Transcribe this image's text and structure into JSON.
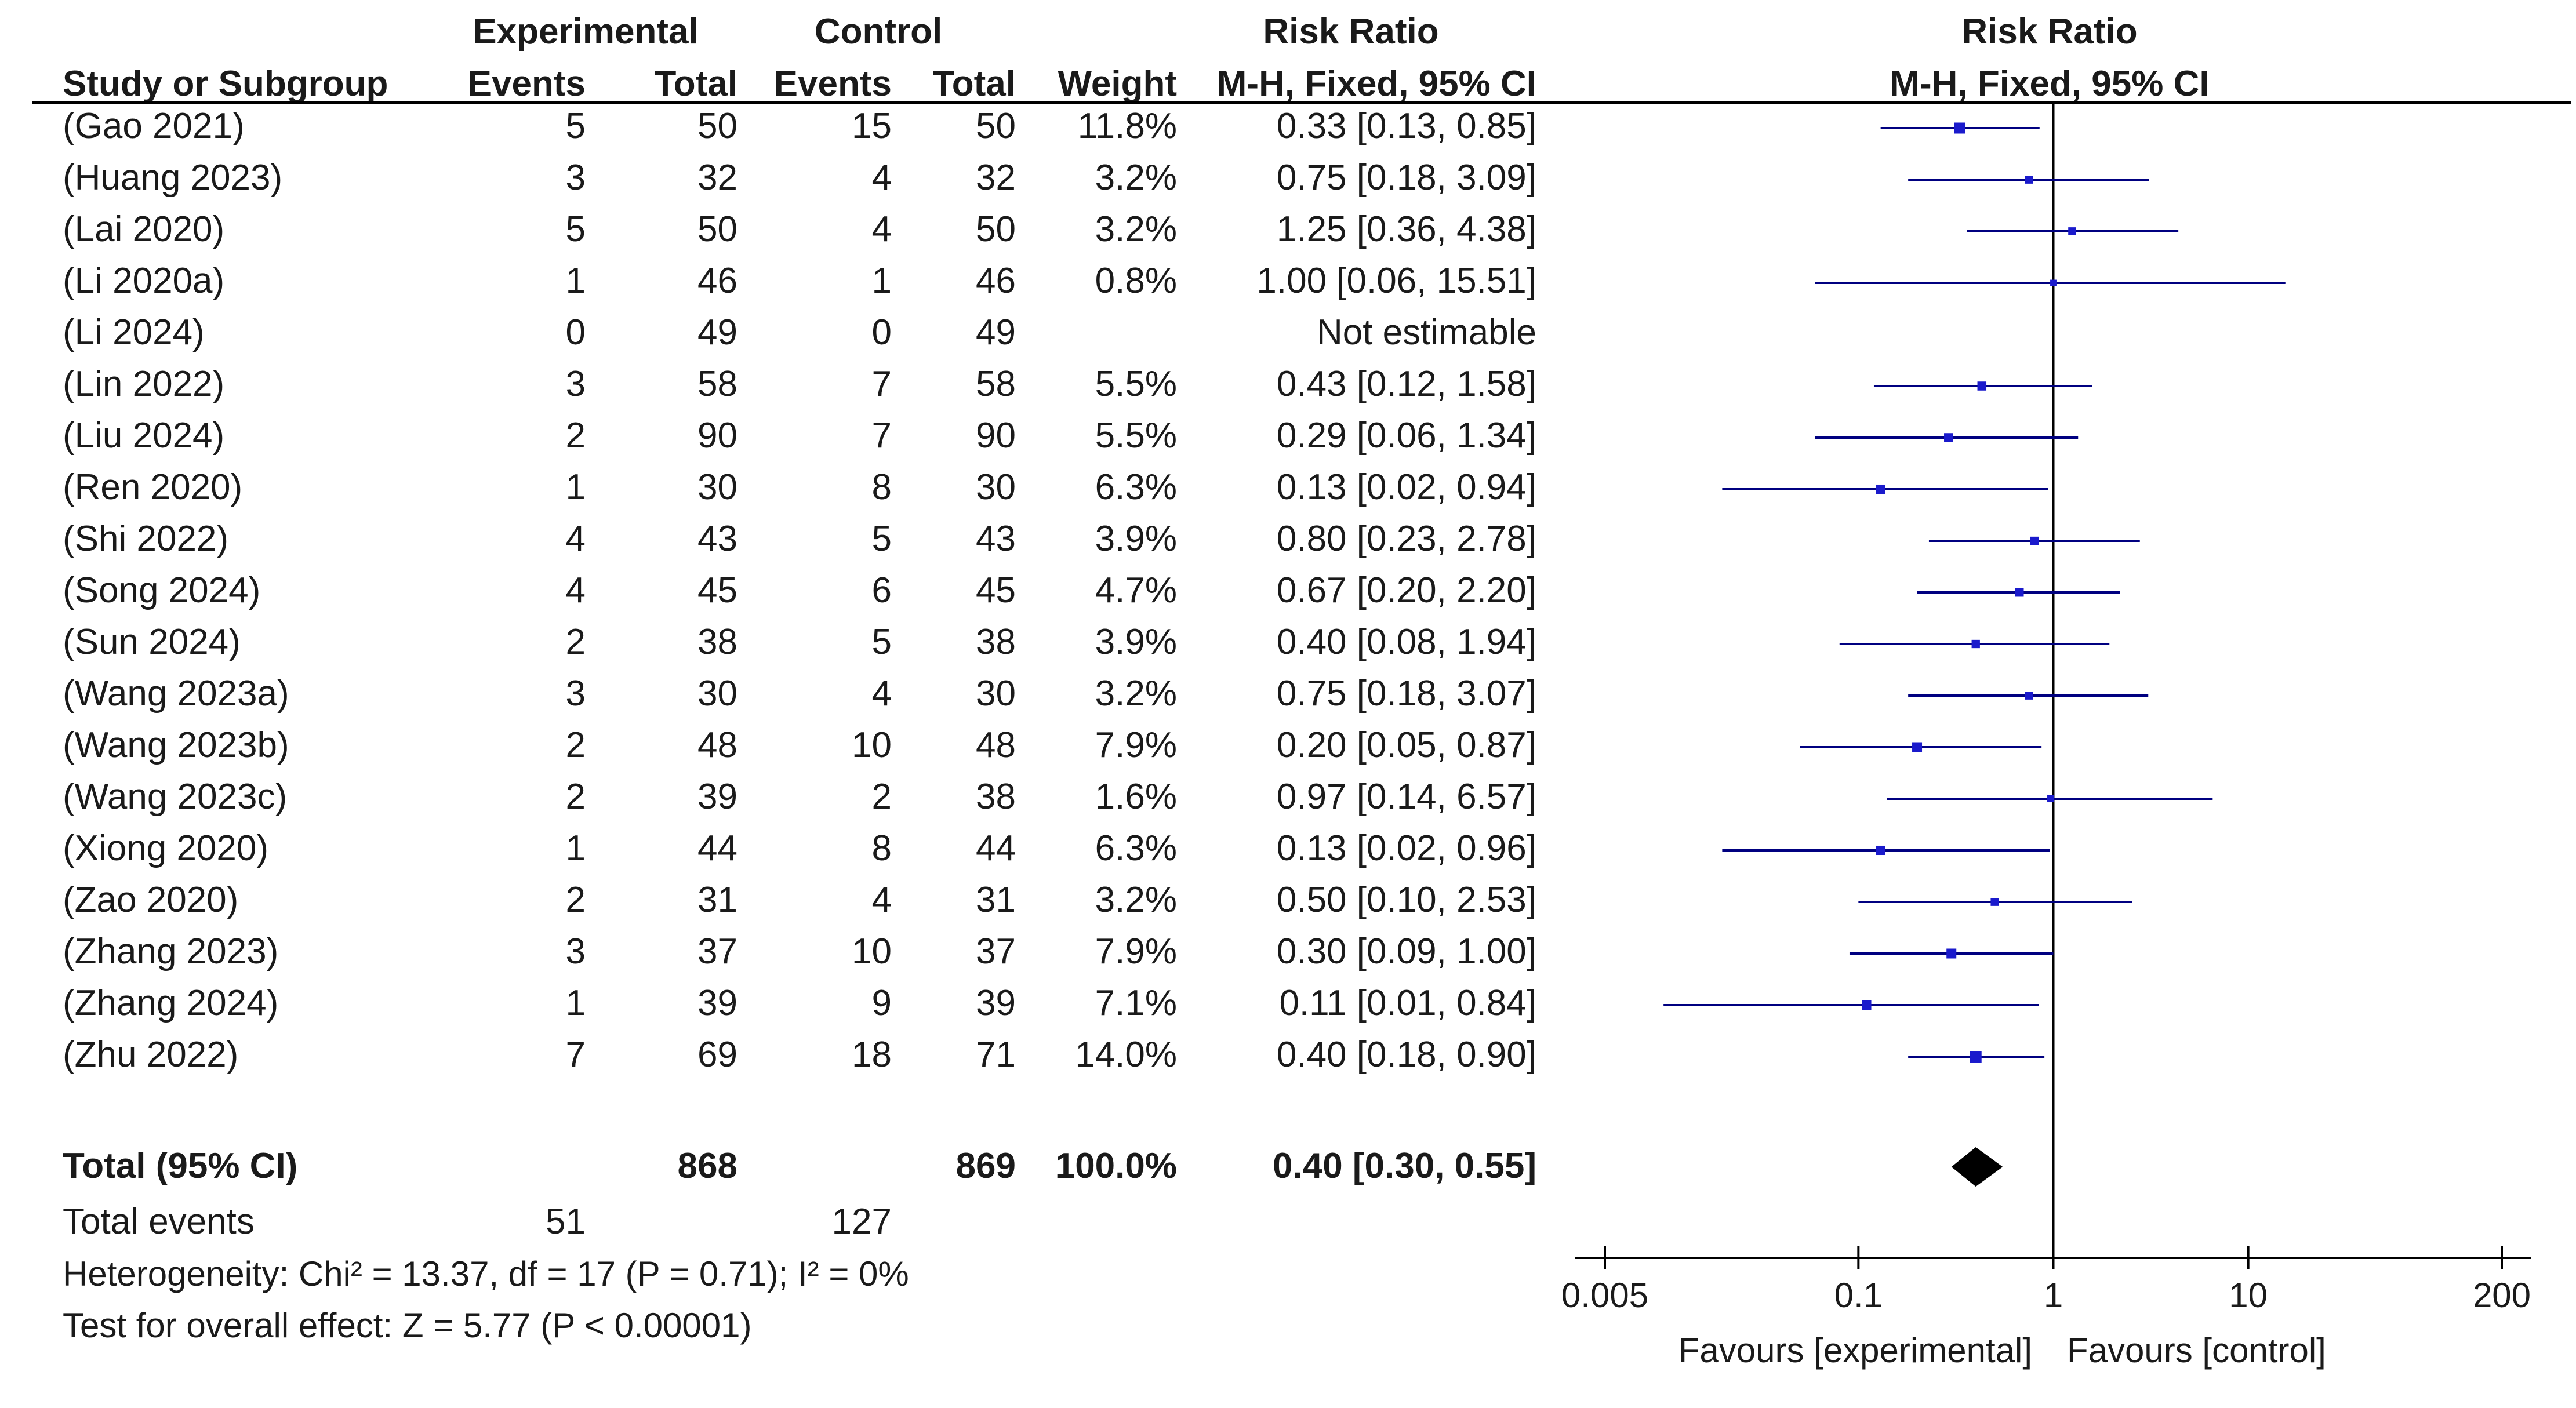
{
  "header": {
    "group_experimental": "Experimental",
    "group_control": "Control",
    "col_study": "Study or Subgroup",
    "col_exp_events": "Events",
    "col_exp_total": "Total",
    "col_ctl_events": "Events",
    "col_ctl_total": "Total",
    "col_weight": "Weight",
    "rr_title_left": "Risk Ratio",
    "rr_method_left": "M-H, Fixed, 95% CI",
    "rr_title_right": "Risk Ratio",
    "rr_method_right": "M-H, Fixed, 95% CI"
  },
  "studies": [
    {
      "study": "(Gao 2021)",
      "exp_events": "5",
      "exp_total": "50",
      "ctl_events": "15",
      "ctl_total": "50",
      "weight": "11.8%",
      "ci_text": "0.33 [0.13, 0.85]"
    },
    {
      "study": "(Huang 2023)",
      "exp_events": "3",
      "exp_total": "32",
      "ctl_events": "4",
      "ctl_total": "32",
      "weight": "3.2%",
      "ci_text": "0.75 [0.18, 3.09]"
    },
    {
      "study": "(Lai 2020)",
      "exp_events": "5",
      "exp_total": "50",
      "ctl_events": "4",
      "ctl_total": "50",
      "weight": "3.2%",
      "ci_text": "1.25 [0.36, 4.38]"
    },
    {
      "study": "(Li 2020a)",
      "exp_events": "1",
      "exp_total": "46",
      "ctl_events": "1",
      "ctl_total": "46",
      "weight": "0.8%",
      "ci_text": "1.00 [0.06, 15.51]"
    },
    {
      "study": "(Li 2024)",
      "exp_events": "0",
      "exp_total": "49",
      "ctl_events": "0",
      "ctl_total": "49",
      "weight": "",
      "ci_text": "Not estimable"
    },
    {
      "study": "(Lin 2022)",
      "exp_events": "3",
      "exp_total": "58",
      "ctl_events": "7",
      "ctl_total": "58",
      "weight": "5.5%",
      "ci_text": "0.43 [0.12, 1.58]"
    },
    {
      "study": "(Liu 2024)",
      "exp_events": "2",
      "exp_total": "90",
      "ctl_events": "7",
      "ctl_total": "90",
      "weight": "5.5%",
      "ci_text": "0.29 [0.06, 1.34]"
    },
    {
      "study": "(Ren 2020)",
      "exp_events": "1",
      "exp_total": "30",
      "ctl_events": "8",
      "ctl_total": "30",
      "weight": "6.3%",
      "ci_text": "0.13 [0.02, 0.94]"
    },
    {
      "study": "(Shi 2022)",
      "exp_events": "4",
      "exp_total": "43",
      "ctl_events": "5",
      "ctl_total": "43",
      "weight": "3.9%",
      "ci_text": "0.80 [0.23, 2.78]"
    },
    {
      "study": "(Song 2024)",
      "exp_events": "4",
      "exp_total": "45",
      "ctl_events": "6",
      "ctl_total": "45",
      "weight": "4.7%",
      "ci_text": "0.67 [0.20, 2.20]"
    },
    {
      "study": "(Sun 2024)",
      "exp_events": "2",
      "exp_total": "38",
      "ctl_events": "5",
      "ctl_total": "38",
      "weight": "3.9%",
      "ci_text": "0.40 [0.08, 1.94]"
    },
    {
      "study": "(Wang 2023a)",
      "exp_events": "3",
      "exp_total": "30",
      "ctl_events": "4",
      "ctl_total": "30",
      "weight": "3.2%",
      "ci_text": "0.75 [0.18, 3.07]"
    },
    {
      "study": "(Wang 2023b)",
      "exp_events": "2",
      "exp_total": "48",
      "ctl_events": "10",
      "ctl_total": "48",
      "weight": "7.9%",
      "ci_text": "0.20 [0.05, 0.87]"
    },
    {
      "study": "(Wang 2023c)",
      "exp_events": "2",
      "exp_total": "39",
      "ctl_events": "2",
      "ctl_total": "38",
      "weight": "1.6%",
      "ci_text": "0.97 [0.14, 6.57]"
    },
    {
      "study": "(Xiong 2020)",
      "exp_events": "1",
      "exp_total": "44",
      "ctl_events": "8",
      "ctl_total": "44",
      "weight": "6.3%",
      "ci_text": "0.13 [0.02, 0.96]"
    },
    {
      "study": "(Zao 2020)",
      "exp_events": "2",
      "exp_total": "31",
      "ctl_events": "4",
      "ctl_total": "31",
      "weight": "3.2%",
      "ci_text": "0.50 [0.10, 2.53]"
    },
    {
      "study": "(Zhang 2023)",
      "exp_events": "3",
      "exp_total": "37",
      "ctl_events": "10",
      "ctl_total": "37",
      "weight": "7.9%",
      "ci_text": "0.30 [0.09, 1.00]"
    },
    {
      "study": "(Zhang 2024)",
      "exp_events": "1",
      "exp_total": "39",
      "ctl_events": "9",
      "ctl_total": "39",
      "weight": "7.1%",
      "ci_text": "0.11 [0.01, 0.84]"
    },
    {
      "study": "(Zhu 2022)",
      "exp_events": "7",
      "exp_total": "69",
      "ctl_events": "18",
      "ctl_total": "71",
      "weight": "14.0%",
      "ci_text": "0.40 [0.18, 0.90]"
    }
  ],
  "total_row": {
    "label": "Total (95% CI)",
    "exp_total": "868",
    "ctl_total": "869",
    "weight": "100.0%",
    "ci_text": "0.40 [0.30, 0.55]"
  },
  "total_events": {
    "label": "Total events",
    "exp": "51",
    "ctl": "127"
  },
  "heterogeneity": "Heterogeneity: Chi² = 13.37, df = 17 (P = 0.71); I² = 0%",
  "overall_effect": "Test for overall effect: Z = 5.77 (P < 0.00001)",
  "axis": {
    "ticks": [
      "0.005",
      "0.1",
      "1",
      "10",
      "200"
    ],
    "favours_left": "Favours [experimental]",
    "favours_right": "Favours [control]"
  },
  "colors": {
    "marker": "#1a1acc",
    "line": "#000080",
    "text": "#1a1a1a",
    "diamond": "#000000"
  },
  "chart_data": {
    "type": "forest",
    "scale": "log",
    "xlim": [
      0.005,
      200
    ],
    "tick_values": [
      0.005,
      0.1,
      1,
      10,
      200
    ],
    "null_line": 1,
    "points": [
      {
        "rr": 0.33,
        "lo": 0.13,
        "hi": 0.85,
        "weight": 11.8
      },
      {
        "rr": 0.75,
        "lo": 0.18,
        "hi": 3.09,
        "weight": 3.2
      },
      {
        "rr": 1.25,
        "lo": 0.36,
        "hi": 4.38,
        "weight": 3.2
      },
      {
        "rr": 1.0,
        "lo": 0.06,
        "hi": 15.51,
        "weight": 0.8
      },
      null,
      {
        "rr": 0.43,
        "lo": 0.12,
        "hi": 1.58,
        "weight": 5.5
      },
      {
        "rr": 0.29,
        "lo": 0.06,
        "hi": 1.34,
        "weight": 5.5
      },
      {
        "rr": 0.13,
        "lo": 0.02,
        "hi": 0.94,
        "weight": 6.3
      },
      {
        "rr": 0.8,
        "lo": 0.23,
        "hi": 2.78,
        "weight": 3.9
      },
      {
        "rr": 0.67,
        "lo": 0.2,
        "hi": 2.2,
        "weight": 4.7
      },
      {
        "rr": 0.4,
        "lo": 0.08,
        "hi": 1.94,
        "weight": 3.9
      },
      {
        "rr": 0.75,
        "lo": 0.18,
        "hi": 3.07,
        "weight": 3.2
      },
      {
        "rr": 0.2,
        "lo": 0.05,
        "hi": 0.87,
        "weight": 7.9
      },
      {
        "rr": 0.97,
        "lo": 0.14,
        "hi": 6.57,
        "weight": 1.6
      },
      {
        "rr": 0.13,
        "lo": 0.02,
        "hi": 0.96,
        "weight": 6.3
      },
      {
        "rr": 0.5,
        "lo": 0.1,
        "hi": 2.53,
        "weight": 3.2
      },
      {
        "rr": 0.3,
        "lo": 0.09,
        "hi": 1.0,
        "weight": 7.9
      },
      {
        "rr": 0.11,
        "lo": 0.01,
        "hi": 0.84,
        "weight": 7.1
      },
      {
        "rr": 0.4,
        "lo": 0.18,
        "hi": 0.9,
        "weight": 14.0
      }
    ],
    "pooled": {
      "rr": 0.4,
      "lo": 0.3,
      "hi": 0.55
    }
  }
}
